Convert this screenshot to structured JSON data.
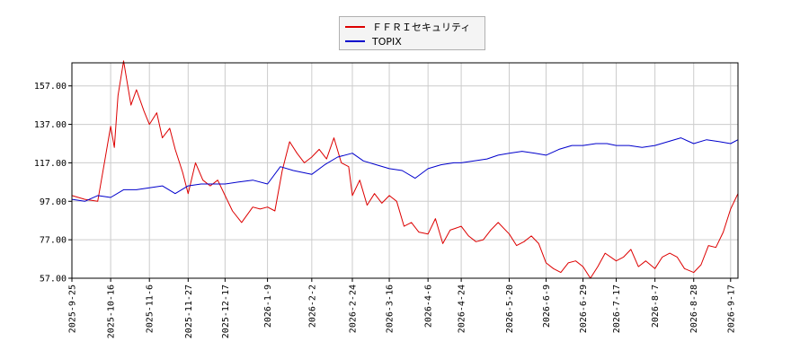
{
  "chart_data": {
    "type": "line",
    "title": "",
    "xlabel": "",
    "ylabel": "",
    "ylim": [
      57,
      169
    ],
    "y_ticks": [
      "57.00",
      "77.00",
      "97.00",
      "117.00",
      "137.00",
      "157.00"
    ],
    "x_ticks": [
      "2025-9-25",
      "2025-10-16",
      "2025-11-6",
      "2025-11-27",
      "2025-12-17",
      "2026-1-9",
      "2026-2-2",
      "2026-2-24",
      "2026-3-16",
      "2026-4-6",
      "2026-4-24",
      "2026-5-20",
      "2026-6-9",
      "2026-6-29",
      "2026-7-17",
      "2026-8-7",
      "2026-8-28",
      "2026-9-17"
    ],
    "grid": true,
    "legend_position": "top-center",
    "series": [
      {
        "name": "ＦＦＲＩセキュリティ",
        "color": "#dd0000",
        "x": [
          "2025-9-25",
          "2025-10-2",
          "2025-10-9",
          "2025-10-13",
          "2025-10-16",
          "2025-10-18",
          "2025-10-20",
          "2025-10-23",
          "2025-10-27",
          "2025-10-30",
          "2025-11-3",
          "2025-11-6",
          "2025-11-10",
          "2025-11-13",
          "2025-11-17",
          "2025-11-20",
          "2025-11-24",
          "2025-11-27",
          "2025-12-1",
          "2025-12-5",
          "2025-12-9",
          "2025-12-13",
          "2025-12-17",
          "2025-12-21",
          "2025-12-26",
          "2026-1-1",
          "2026-1-5",
          "2026-1-9",
          "2026-1-13",
          "2026-1-17",
          "2026-1-21",
          "2026-1-25",
          "2026-1-29",
          "2026-2-2",
          "2026-2-6",
          "2026-2-10",
          "2026-2-14",
          "2026-2-18",
          "2026-2-22",
          "2026-2-24",
          "2026-2-28",
          "2026-3-4",
          "2026-3-8",
          "2026-3-12",
          "2026-3-16",
          "2026-3-20",
          "2026-3-24",
          "2026-3-28",
          "2026-4-1",
          "2026-4-6",
          "2026-4-10",
          "2026-4-14",
          "2026-4-18",
          "2026-4-24",
          "2026-4-28",
          "2026-5-2",
          "2026-5-6",
          "2026-5-10",
          "2026-5-14",
          "2026-5-20",
          "2026-5-24",
          "2026-5-28",
          "2026-6-1",
          "2026-6-5",
          "2026-6-9",
          "2026-6-13",
          "2026-6-17",
          "2026-6-21",
          "2026-6-25",
          "2026-6-29",
          "2026-7-3",
          "2026-7-7",
          "2026-7-11",
          "2026-7-17",
          "2026-7-21",
          "2026-7-25",
          "2026-7-29",
          "2026-8-2",
          "2026-8-7",
          "2026-8-11",
          "2026-8-15",
          "2026-8-19",
          "2026-8-23",
          "2026-8-28",
          "2026-9-1",
          "2026-9-5",
          "2026-9-9",
          "2026-9-13",
          "2026-9-17",
          "2026-9-21"
        ],
        "values": [
          100,
          98,
          97,
          119,
          136,
          125,
          152,
          170,
          147,
          155,
          144,
          137,
          143,
          130,
          135,
          124,
          112,
          101,
          117,
          108,
          105,
          108,
          100,
          92,
          86,
          94,
          93,
          94,
          92,
          113,
          128,
          122,
          117,
          120,
          124,
          119,
          130,
          117,
          115,
          100,
          108,
          95,
          101,
          96,
          100,
          97,
          84,
          86,
          81,
          80,
          88,
          75,
          82,
          84,
          79,
          76,
          77,
          82,
          86,
          80,
          74,
          76,
          79,
          75,
          65,
          62,
          60,
          65,
          66,
          63,
          57,
          63,
          70,
          66,
          68,
          72,
          63,
          66,
          62,
          68,
          70,
          68,
          62,
          60,
          64,
          74,
          73,
          81,
          93,
          101
        ],
        "label": "ＦＦＲＩセキュリティ"
      },
      {
        "name": "TOPIX",
        "color": "#0000cc",
        "x": [
          "2025-9-25",
          "2025-10-2",
          "2025-10-9",
          "2025-10-16",
          "2025-10-23",
          "2025-10-30",
          "2025-11-6",
          "2025-11-13",
          "2025-11-20",
          "2025-11-27",
          "2025-12-4",
          "2025-12-10",
          "2025-12-17",
          "2025-12-24",
          "2026-1-1",
          "2026-1-9",
          "2026-1-16",
          "2026-1-23",
          "2026-2-2",
          "2026-2-9",
          "2026-2-16",
          "2026-2-24",
          "2026-3-2",
          "2026-3-9",
          "2026-3-16",
          "2026-3-23",
          "2026-3-30",
          "2026-4-6",
          "2026-4-13",
          "2026-4-20",
          "2026-4-24",
          "2026-5-1",
          "2026-5-8",
          "2026-5-14",
          "2026-5-20",
          "2026-5-27",
          "2026-6-3",
          "2026-6-9",
          "2026-6-16",
          "2026-6-23",
          "2026-6-29",
          "2026-7-6",
          "2026-7-12",
          "2026-7-17",
          "2026-7-24",
          "2026-7-31",
          "2026-8-7",
          "2026-8-14",
          "2026-8-21",
          "2026-8-28",
          "2026-9-4",
          "2026-9-11",
          "2026-9-17",
          "2026-9-21"
        ],
        "values": [
          98,
          97,
          100,
          99,
          103,
          103,
          104,
          105,
          101,
          105,
          106,
          106,
          106,
          107,
          108,
          106,
          115,
          113,
          111,
          116,
          120,
          122,
          118,
          116,
          114,
          113,
          109,
          114,
          116,
          117,
          117,
          118,
          119,
          121,
          122,
          123,
          122,
          121,
          124,
          126,
          126,
          127,
          127,
          126,
          126,
          125,
          126,
          128,
          130,
          127,
          129,
          128,
          127,
          129
        ],
        "label": "TOPIX"
      }
    ]
  }
}
